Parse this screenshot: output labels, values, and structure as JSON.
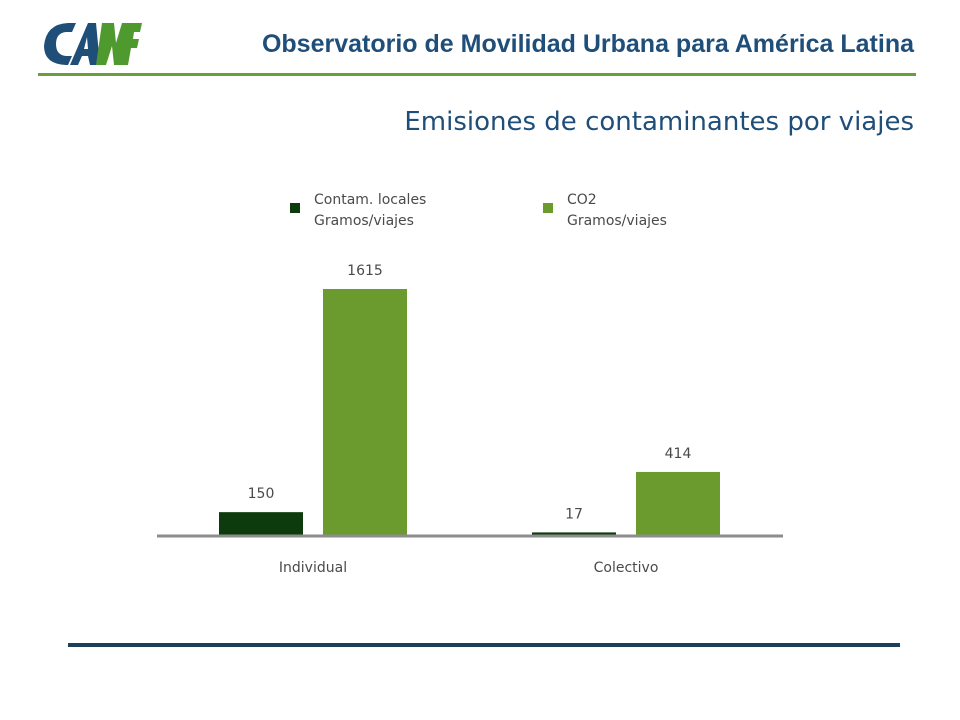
{
  "header": {
    "logo_text": "CAF",
    "title": "Observatorio de Movilidad Urbana para América Latina"
  },
  "slide_title": "Emisiones de contaminantes por viajes",
  "colors": {
    "header_text": "#1f4e79",
    "accent_green": "#6a9e3a",
    "logo_blue": "#1f4e79",
    "logo_green": "#4f9a2e",
    "footer_rule": "#1e3f5a"
  },
  "chart_data": {
    "type": "bar",
    "title": "",
    "categories": [
      "Individual",
      "Colectivo"
    ],
    "series": [
      {
        "name_lines": [
          "Contam. locales",
          "Gramos/viajes"
        ],
        "values": [
          150,
          17
        ],
        "color": "#0d3b0d"
      },
      {
        "name_lines": [
          "CO2",
          "Gramos/viajes"
        ],
        "values": [
          1615,
          414
        ],
        "color": "#6b9a2e"
      }
    ],
    "ylim": [
      0,
      1800
    ],
    "legend_position": "top",
    "grid": false
  }
}
